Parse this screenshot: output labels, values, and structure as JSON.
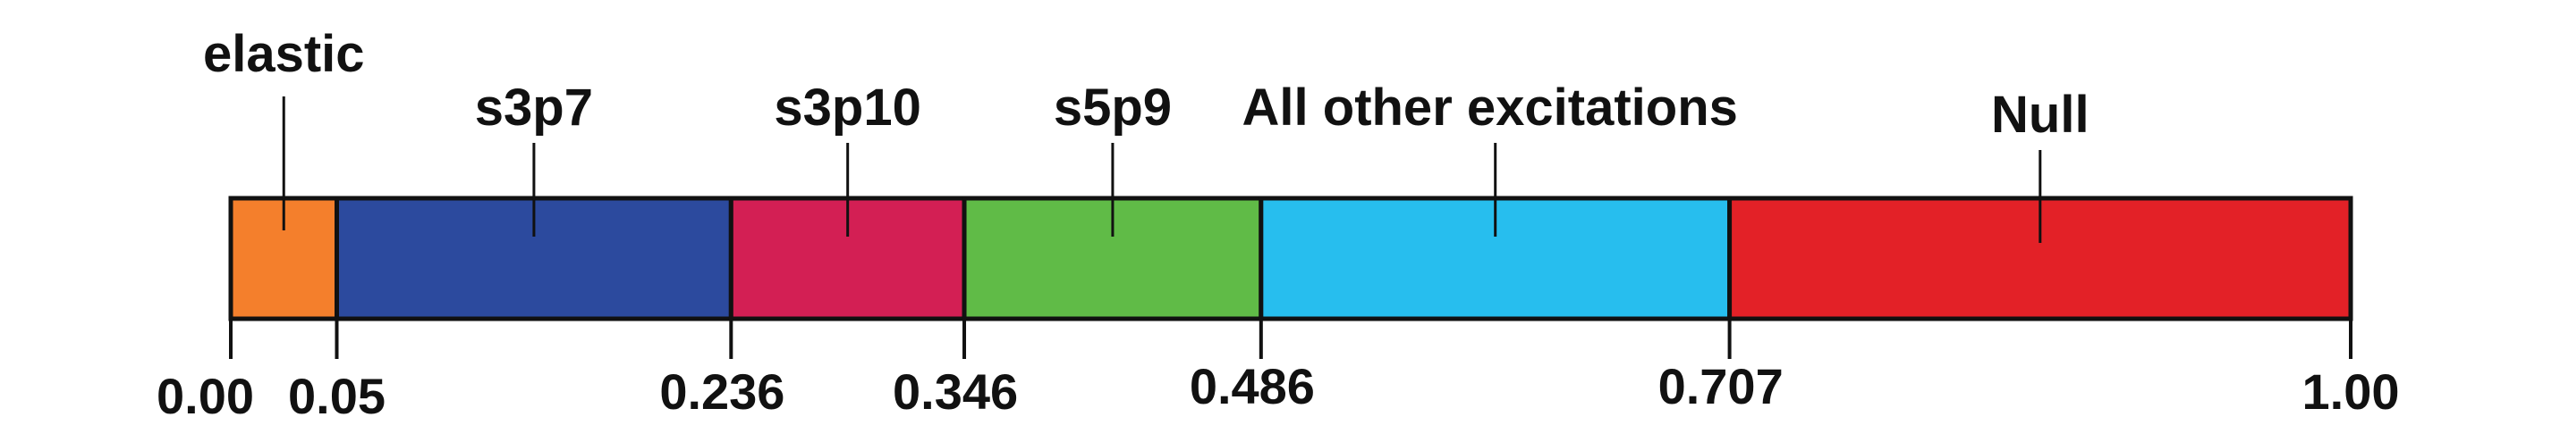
{
  "chart_data": {
    "type": "bar",
    "orientation": "horizontal-stacked",
    "xlim": [
      0,
      1
    ],
    "segments": [
      {
        "name": "elastic",
        "start": 0.0,
        "end": 0.05,
        "color": "#F47F2C"
      },
      {
        "name": "s3p7",
        "start": 0.05,
        "end": 0.236,
        "color": "#2C4A9E"
      },
      {
        "name": "s3p10",
        "start": 0.236,
        "end": 0.346,
        "color": "#D31F54"
      },
      {
        "name": "s5p9",
        "start": 0.346,
        "end": 0.486,
        "color": "#60BB47"
      },
      {
        "name": "All other excitations",
        "start": 0.486,
        "end": 0.707,
        "color": "#27BEEE"
      },
      {
        "name": "Null",
        "start": 0.707,
        "end": 1.0,
        "color": "#E32127"
      }
    ],
    "ticks": [
      {
        "value": 0.0,
        "label": "0.00"
      },
      {
        "value": 0.05,
        "label": "0.05"
      },
      {
        "value": 0.236,
        "label": "0.236"
      },
      {
        "value": 0.346,
        "label": "0.346"
      },
      {
        "value": 0.486,
        "label": "0.486"
      },
      {
        "value": 0.707,
        "label": "0.707"
      },
      {
        "value": 1.0,
        "label": "1.00"
      }
    ]
  }
}
